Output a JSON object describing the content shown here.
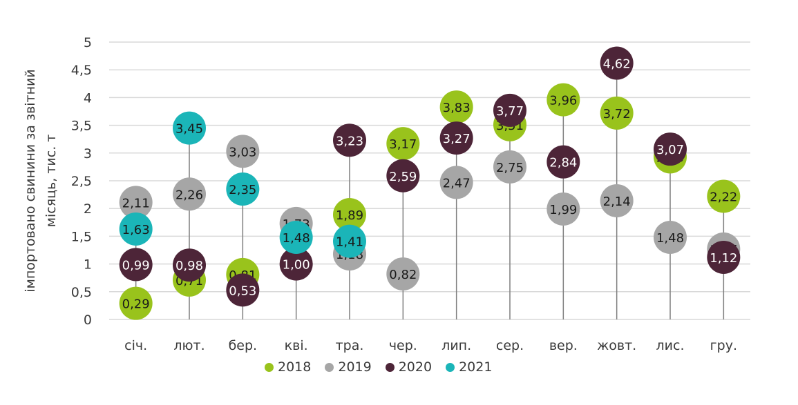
{
  "chart_data": {
    "type": "scatter",
    "subtype": "dot-plot",
    "title": "",
    "xlabel": "",
    "ylabel": "імпортовано свинини за звітний місяць, тис. т",
    "ylabel_lines": [
      "імпортовано свинини за звітний",
      "місяць, тис. т"
    ],
    "ylim": [
      0,
      5
    ],
    "yticks": [
      0,
      0.5,
      1,
      1.5,
      2,
      2.5,
      3,
      3.5,
      4,
      4.5,
      5
    ],
    "ytick_labels": [
      "0",
      "0,5",
      "1",
      "1,5",
      "2",
      "2,5",
      "3",
      "3,5",
      "4",
      "4,5",
      "5"
    ],
    "grid": true,
    "legend_position": "bottom",
    "categories": [
      "січ.",
      "лют.",
      "бер.",
      "кві.",
      "тра.",
      "чер.",
      "лип.",
      "сер.",
      "вер.",
      "жовт.",
      "лис.",
      "гру."
    ],
    "series": [
      {
        "name": "2018",
        "color": "#99c31c",
        "label_color": "#1a1a1a",
        "values": [
          0.29,
          0.71,
          0.81,
          null,
          1.89,
          3.17,
          3.83,
          3.51,
          3.96,
          3.72,
          2.93,
          2.22
        ],
        "labels": [
          "0,29",
          "0,71",
          "0,81",
          null,
          "1,89",
          "3,17",
          "3,83",
          "3,51",
          "3,96",
          "3,72",
          "2,93",
          "2,22"
        ]
      },
      {
        "name": "2019",
        "color": "#a6a6a6",
        "label_color": "#1a1a1a",
        "values": [
          2.11,
          2.26,
          3.03,
          1.73,
          1.18,
          0.82,
          2.47,
          2.75,
          1.99,
          2.14,
          1.48,
          1.27
        ],
        "labels": [
          "2,11",
          "2,26",
          "3,03",
          "1,73",
          "1,18",
          "0,82",
          "2,47",
          "2,75",
          "1,99",
          "2,14",
          "1,48",
          "1,27"
        ]
      },
      {
        "name": "2020",
        "color": "#4d2538",
        "label_color": "#ffffff",
        "values": [
          0.99,
          0.98,
          0.53,
          1.0,
          3.23,
          2.59,
          3.27,
          3.77,
          2.84,
          4.62,
          3.07,
          1.12
        ],
        "labels": [
          "0,99",
          "0,98",
          "0,53",
          "1,00",
          "3,23",
          "2,59",
          "3,27",
          "3,77",
          "2,84",
          "4,62",
          "3,07",
          "1,12"
        ]
      },
      {
        "name": "2021",
        "color": "#1bb5b8",
        "label_color": "#1a1a1a",
        "values": [
          1.63,
          3.45,
          2.35,
          1.48,
          1.41,
          null,
          null,
          null,
          null,
          null,
          null,
          null
        ],
        "labels": [
          "1,63",
          "3,45",
          "2,35",
          "1,48",
          "1,41",
          null,
          null,
          null,
          null,
          null,
          null,
          null
        ]
      }
    ],
    "legend": [
      {
        "name": "2018",
        "color": "#99c31c"
      },
      {
        "name": "2019",
        "color": "#a6a6a6"
      },
      {
        "name": "2020",
        "color": "#4d2538"
      },
      {
        "name": "2021",
        "color": "#1bb5b8"
      }
    ],
    "colors": {
      "gridline": "#d9d9d9",
      "stem": "#7f7f7f",
      "text": "#3a3a3a"
    }
  }
}
